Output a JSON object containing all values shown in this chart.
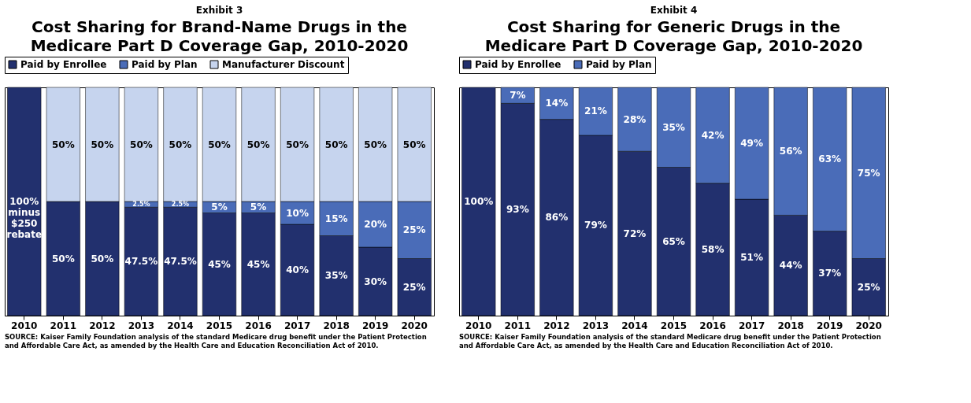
{
  "chart_data": [
    {
      "type": "bar",
      "stacked": true,
      "subtitle": "Exhibit 3",
      "title": "Cost Sharing for Brand-Name Drugs in the Medicare Part D Coverage Gap, 2010-2020",
      "legend": "top",
      "grid": false,
      "categories": [
        "2010",
        "2011",
        "2012",
        "2013",
        "2014",
        "2015",
        "2016",
        "2017",
        "2018",
        "2019",
        "2020"
      ],
      "series": [
        {
          "name": "Paid by Enrollee",
          "color": "#22306e",
          "values": [
            100,
            50,
            50,
            47.5,
            47.5,
            45,
            45,
            40,
            35,
            30,
            25
          ],
          "value_labels": [
            "100% minus $250 rebate",
            "50%",
            "50%",
            "47.5%",
            "47.5%",
            "45%",
            "45%",
            "40%",
            "35%",
            "30%",
            "25%"
          ]
        },
        {
          "name": "Paid by Plan",
          "color": "#4a6cb8",
          "values": [
            0,
            0,
            0,
            2.5,
            2.5,
            5,
            5,
            10,
            15,
            20,
            25
          ],
          "value_labels": [
            null,
            null,
            null,
            "2.5%",
            "2.5%",
            "5%",
            "5%",
            "10%",
            "15%",
            "20%",
            "25%"
          ]
        },
        {
          "name": "Manufacturer Discount",
          "color": "#c6d4ee",
          "values": [
            0,
            50,
            50,
            50,
            50,
            50,
            50,
            50,
            50,
            50,
            50
          ],
          "value_labels": [
            null,
            "50%",
            "50%",
            "50%",
            "50%",
            "50%",
            "50%",
            "50%",
            "50%",
            "50%",
            "50%"
          ]
        }
      ],
      "annotations": [
        "SOURCE:  Kaiser Family Foundation analysis of the standard Medicare drug benefit under the Patient Protection and Affordable Care Act, as amended by the Health Care and Education Reconciliation Act of 2010."
      ]
    },
    {
      "type": "bar",
      "stacked": true,
      "subtitle": "Exhibit 4",
      "title": "Cost Sharing for Generic Drugs in the Medicare Part D Coverage Gap, 2010-2020",
      "legend": "top",
      "grid": false,
      "categories": [
        "2010",
        "2011",
        "2012",
        "2013",
        "2014",
        "2015",
        "2016",
        "2017",
        "2018",
        "2019",
        "2020"
      ],
      "series": [
        {
          "name": "Paid by Enrollee",
          "color": "#22306e",
          "values": [
            100,
            93,
            86,
            79,
            72,
            65,
            58,
            51,
            44,
            37,
            25
          ],
          "value_labels": [
            "100%",
            "93%",
            "86%",
            "79%",
            "72%",
            "65%",
            "58%",
            "51%",
            "44%",
            "37%",
            "25%"
          ]
        },
        {
          "name": "Paid by Plan",
          "color": "#4a6cb8",
          "values": [
            0,
            7,
            14,
            21,
            28,
            35,
            42,
            49,
            56,
            63,
            75
          ],
          "value_labels": [
            null,
            "7%",
            "14%",
            "21%",
            "28%",
            "35%",
            "42%",
            "49%",
            "56%",
            "63%",
            "75%"
          ]
        }
      ],
      "annotations": [
        "SOURCE:  Kaiser Family Foundation analysis of the standard Medicare drug benefit under the Patient Protection and Affordable Care Act, as amended by the Health Care and Education Reconciliation Act of 2010."
      ]
    }
  ]
}
